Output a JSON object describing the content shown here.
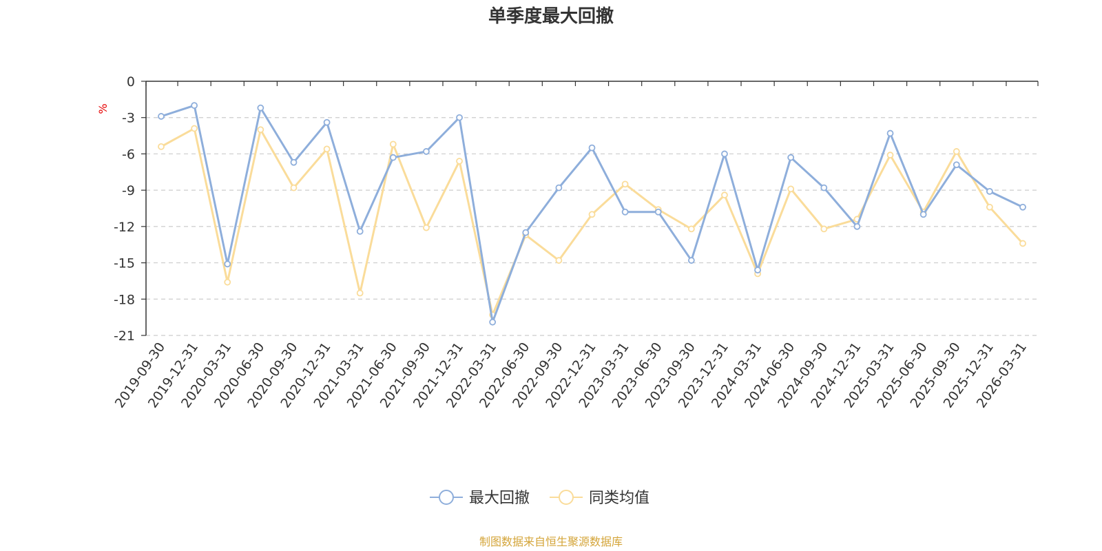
{
  "chart_data": {
    "type": "line",
    "title": "单季度最大回撤",
    "ylabel": "%",
    "ylim": [
      -21,
      0
    ],
    "yticks": [
      0,
      -3,
      -6,
      -9,
      -12,
      -15,
      -18,
      -21
    ],
    "grid": true,
    "legend_position": "bottom",
    "categories": [
      "2019-09-30",
      "2019-12-31",
      "2020-03-31",
      "2020-06-30",
      "2020-09-30",
      "2020-12-31",
      "2021-03-31",
      "2021-06-30",
      "2021-09-30",
      "2021-12-31",
      "2022-03-31",
      "2022-06-30",
      "2022-09-30",
      "2022-12-31",
      "2023-03-31",
      "2023-06-30",
      "2023-09-30",
      "2023-12-31",
      "2024-03-31",
      "2024-06-30",
      "2024-09-30",
      "2024-12-31",
      "2025-03-31",
      "2025-06-30",
      "2025-09-30",
      "2025-12-31",
      "2026-03-31"
    ],
    "series": [
      {
        "name": "最大回撤",
        "color": "#8eaedb",
        "values": [
          -2.9,
          -2.0,
          -15.1,
          -2.2,
          -6.7,
          -3.4,
          -12.4,
          -6.3,
          -5.8,
          -3.0,
          -19.9,
          -12.5,
          -8.8,
          -5.5,
          -10.8,
          -10.8,
          -14.8,
          -6.0,
          -15.6,
          -6.3,
          -8.8,
          -12.0,
          -4.3,
          -11.0,
          -6.9,
          -9.1,
          -10.4
        ]
      },
      {
        "name": "同类均值",
        "color": "#fadc9a",
        "values": [
          -5.4,
          -3.9,
          -16.6,
          -4.0,
          -8.8,
          -5.6,
          -17.5,
          -5.2,
          -12.1,
          -6.6,
          -19.3,
          -12.7,
          -14.8,
          -11.0,
          -8.5,
          -10.6,
          -12.2,
          -9.4,
          -15.9,
          -8.9,
          -12.2,
          -11.4,
          -6.1,
          -10.8,
          -5.8,
          -10.4,
          -13.4
        ]
      }
    ]
  },
  "source_note": "制图数据来自恒生聚源数据库",
  "colors": {
    "axis": "#333333",
    "grid": "#cccccc",
    "unit": "#e60000",
    "source": "#d4a53a",
    "title": "#333333"
  }
}
